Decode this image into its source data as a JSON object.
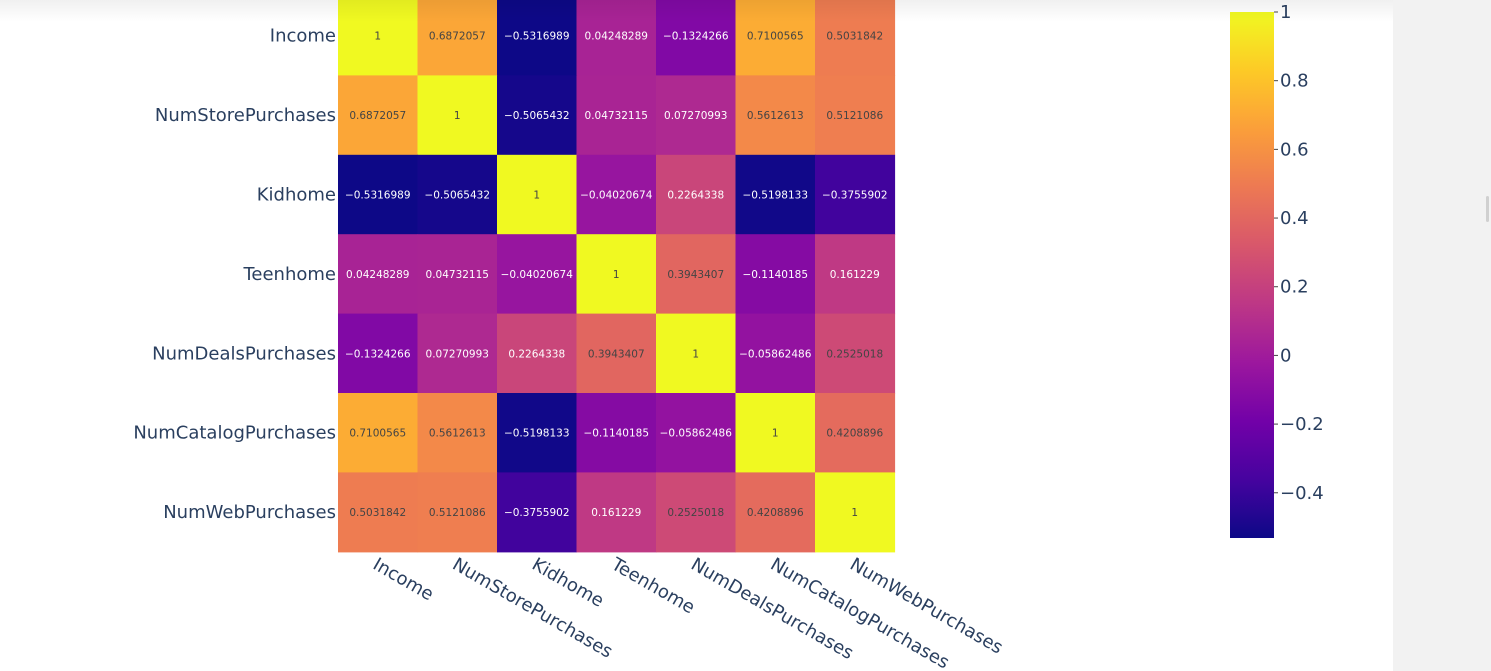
{
  "chart_data": {
    "type": "heatmap",
    "title": "",
    "x": [
      "Income",
      "NumStorePurchases",
      "Kidhome",
      "Teenhome",
      "NumDealsPurchases",
      "NumCatalogPurchases",
      "NumWebPurchases"
    ],
    "y": [
      "Income",
      "NumStorePurchases",
      "Kidhome",
      "Teenhome",
      "NumDealsPurchases",
      "NumCatalogPurchases",
      "NumWebPurchases"
    ],
    "z": [
      [
        1,
        0.6872057,
        -0.5316989,
        0.04248289,
        -0.1324266,
        0.7100565,
        0.5031842
      ],
      [
        0.6872057,
        1,
        -0.5065432,
        0.04732115,
        0.07270993,
        0.5612613,
        0.5121086
      ],
      [
        -0.5316989,
        -0.5065432,
        1,
        -0.04020674,
        0.2264338,
        -0.5198133,
        -0.3755902
      ],
      [
        0.04248289,
        0.04732115,
        -0.04020674,
        1,
        0.3943407,
        -0.1140185,
        0.161229
      ],
      [
        -0.1324266,
        0.07270993,
        0.2264338,
        0.3943407,
        1,
        -0.05862486,
        0.2525018
      ],
      [
        0.7100565,
        0.5612613,
        -0.5198133,
        -0.1140185,
        -0.05862486,
        1,
        0.4208896
      ],
      [
        0.5031842,
        0.5121086,
        -0.3755902,
        0.161229,
        0.2525018,
        0.4208896,
        1
      ]
    ],
    "text": [
      [
        "1",
        "0.6872057",
        "−0.5316989",
        "0.04248289",
        "−0.1324266",
        "0.7100565",
        "0.5031842"
      ],
      [
        "0.6872057",
        "1",
        "−0.5065432",
        "0.04732115",
        "0.07270993",
        "0.5612613",
        "0.5121086"
      ],
      [
        "−0.5316989",
        "−0.5065432",
        "1",
        "−0.04020674",
        "0.2264338",
        "−0.5198133",
        "−0.3755902"
      ],
      [
        "0.04248289",
        "0.04732115",
        "−0.04020674",
        "1",
        "0.3943407",
        "−0.1140185",
        "0.161229"
      ],
      [
        "−0.1324266",
        "0.07270993",
        "0.2264338",
        "0.3943407",
        "1",
        "−0.05862486",
        "0.2525018"
      ],
      [
        "0.7100565",
        "0.5612613",
        "−0.5198133",
        "−0.1140185",
        "−0.05862486",
        "1",
        "0.4208896"
      ],
      [
        "0.5031842",
        "0.5121086",
        "−0.3755902",
        "0.161229",
        "0.2525018",
        "0.4208896",
        "1"
      ]
    ],
    "zmin": -0.5316989,
    "zmax": 1,
    "colorscale": "plasma",
    "colorscale_stops": [
      [
        0.0,
        "#0d0887"
      ],
      [
        0.111,
        "#46039f"
      ],
      [
        0.222,
        "#7201a8"
      ],
      [
        0.333,
        "#9c179e"
      ],
      [
        0.444,
        "#bd3786"
      ],
      [
        0.556,
        "#d8576b"
      ],
      [
        0.667,
        "#ed7953"
      ],
      [
        0.778,
        "#fb9f3a"
      ],
      [
        0.889,
        "#fdca26"
      ],
      [
        1.0,
        "#f0f921"
      ]
    ],
    "colorbar": {
      "ticks": [
        1,
        0.8,
        0.6,
        0.4,
        0.2,
        0,
        -0.2,
        -0.4
      ],
      "tick_labels": [
        "1",
        "0.8",
        "0.6",
        "0.4",
        "0.2",
        "0",
        "−0.2",
        "−0.4"
      ]
    },
    "xlabel": "",
    "ylabel": "",
    "x_tick_angle": "rotated 30° down-right",
    "grid": false,
    "legend": "none"
  },
  "colors": {
    "axis_text": "#2a3f5f",
    "light_text": "#ffffff",
    "dark_text": "#444444",
    "panel_bg": "#f2f2f2"
  }
}
